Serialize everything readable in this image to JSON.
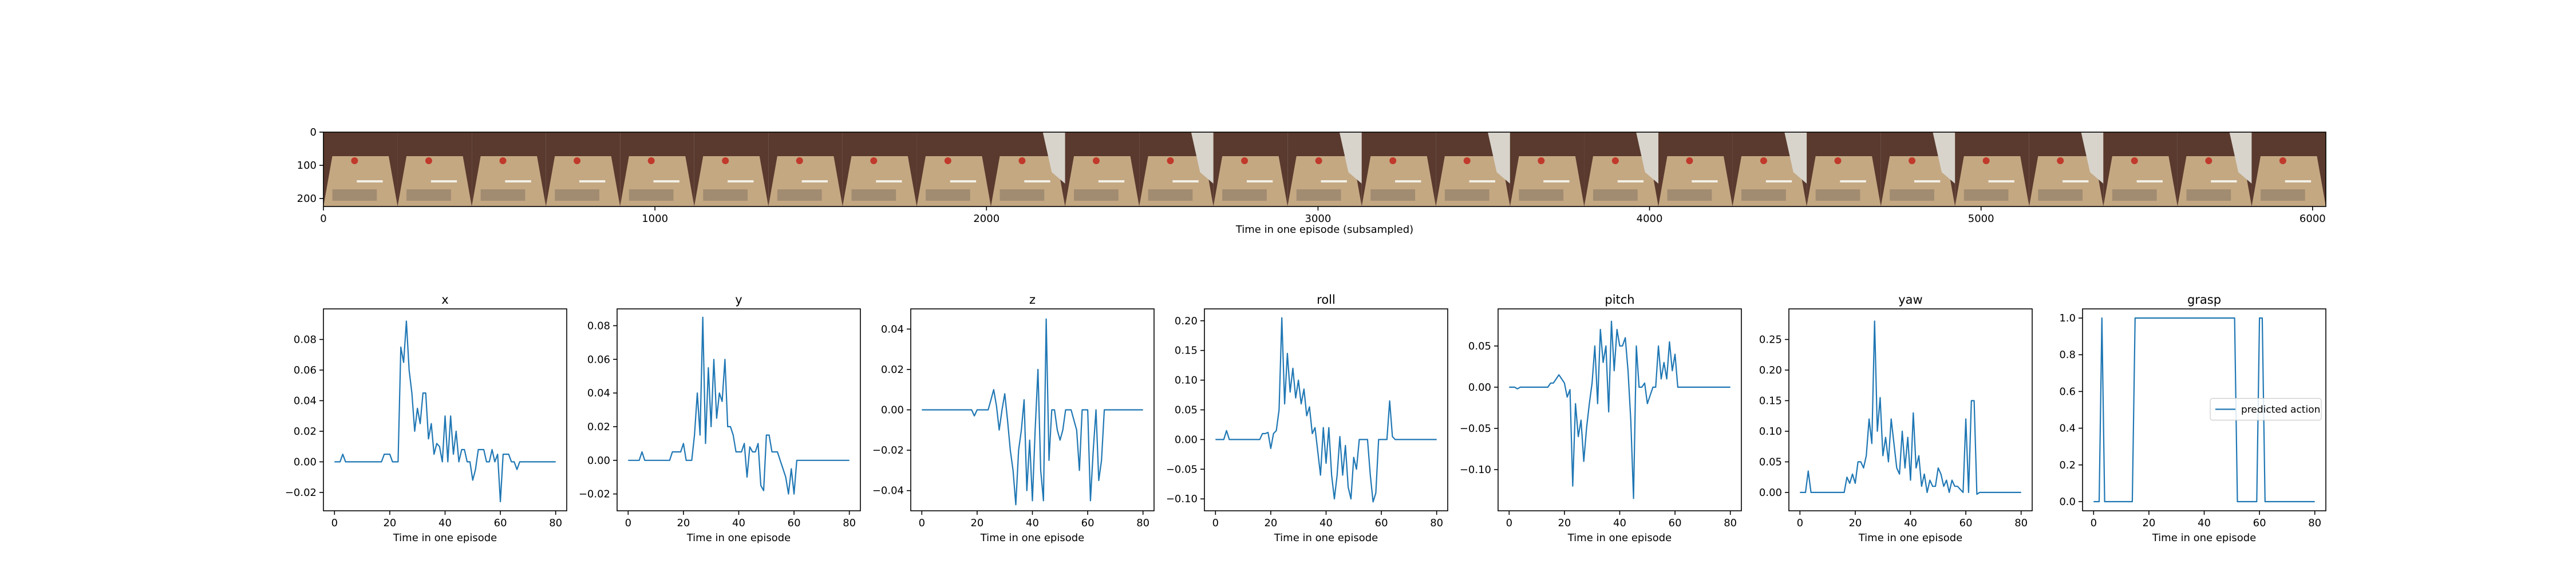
{
  "chart_data": [
    {
      "type": "image-strip",
      "xlabel": "Time in one episode (subsampled)",
      "xlim": [
        0,
        6040
      ],
      "ylim": [
        224,
        0
      ],
      "x_ticks": [
        0,
        1000,
        2000,
        3000,
        4000,
        5000,
        6000
      ],
      "y_ticks": [
        0,
        100,
        200
      ],
      "frame_count": 27,
      "frame_width": 224,
      "frame_height": 224
    },
    {
      "type": "line",
      "title": "x",
      "xlabel": "Time in one episode",
      "xlim": [
        -4,
        84
      ],
      "ylim": [
        -0.032,
        0.1
      ],
      "x_ticks": [
        0,
        20,
        40,
        60,
        80
      ],
      "y_ticks": [
        -0.02,
        0.0,
        0.02,
        0.04,
        0.06,
        0.08
      ],
      "y_tick_labels": [
        "−0.02",
        "0.00",
        "0.02",
        "0.04",
        "0.06",
        "0.08"
      ],
      "series": [
        {
          "values": [
            0,
            0,
            0,
            0.005,
            0,
            0,
            0,
            0,
            0,
            0,
            0,
            0,
            0,
            0,
            0,
            0,
            0,
            0,
            0.005,
            0.005,
            0.005,
            0,
            0,
            0,
            0.075,
            0.065,
            0.092,
            0.06,
            0.045,
            0.02,
            0.035,
            0.025,
            0.045,
            0.045,
            0.015,
            0.025,
            0.005,
            0.012,
            0.01,
            0,
            0.03,
            0,
            0.03,
            0.005,
            0.02,
            0,
            0.008,
            0.008,
            0,
            0,
            -0.012,
            -0.005,
            0.008,
            0.008,
            0.008,
            0,
            0,
            0.008,
            0,
            0.005,
            -0.026,
            0.005,
            0.005,
            0.005,
            0,
            0,
            -0.005,
            0,
            0,
            0,
            0,
            0,
            0,
            0,
            0,
            0,
            0,
            0,
            0,
            0,
            0
          ]
        }
      ],
      "legend": null
    },
    {
      "type": "line",
      "title": "y",
      "xlabel": "Time in one episode",
      "xlim": [
        -4,
        84
      ],
      "ylim": [
        -0.03,
        0.09
      ],
      "x_ticks": [
        0,
        20,
        40,
        60,
        80
      ],
      "y_ticks": [
        -0.02,
        0.0,
        0.02,
        0.04,
        0.06,
        0.08
      ],
      "y_tick_labels": [
        "−0.02",
        "0.00",
        "0.02",
        "0.04",
        "0.06",
        "0.08"
      ],
      "series": [
        {
          "values": [
            0,
            0,
            0,
            0,
            0,
            0.005,
            0,
            0,
            0,
            0,
            0,
            0,
            0,
            0,
            0,
            0,
            0.005,
            0.005,
            0.005,
            0.005,
            0.01,
            0,
            0,
            0,
            0.015,
            0.04,
            0.015,
            0.085,
            0.01,
            0.055,
            0.02,
            0.06,
            0.025,
            0.04,
            0.035,
            0.06,
            0.02,
            0.02,
            0.015,
            0.005,
            0.005,
            0.005,
            0.01,
            -0.01,
            0.008,
            0.005,
            0.005,
            0.01,
            -0.015,
            -0.018,
            0.015,
            0.015,
            0.005,
            0.005,
            0.005,
            0,
            -0.005,
            -0.01,
            -0.02,
            -0.005,
            -0.02,
            0,
            0,
            0,
            0,
            0,
            0,
            0,
            0,
            0,
            0,
            0,
            0,
            0,
            0,
            0,
            0,
            0,
            0,
            0,
            0
          ]
        }
      ],
      "legend": null
    },
    {
      "type": "line",
      "title": "z",
      "xlabel": "Time in one episode",
      "xlim": [
        -4,
        84
      ],
      "ylim": [
        -0.05,
        0.05
      ],
      "x_ticks": [
        0,
        20,
        40,
        60,
        80
      ],
      "y_ticks": [
        -0.04,
        -0.02,
        0.0,
        0.02,
        0.04
      ],
      "y_tick_labels": [
        "−0.04",
        "−0.02",
        "0.00",
        "0.02",
        "0.04"
      ],
      "series": [
        {
          "values": [
            0,
            0,
            0,
            0,
            0,
            0,
            0,
            0,
            0,
            0,
            0,
            0,
            0,
            0,
            0,
            0,
            0,
            0,
            0,
            -0.003,
            0,
            0,
            0,
            0,
            0,
            0.005,
            0.01,
            0.002,
            -0.01,
            0,
            0.008,
            -0.005,
            -0.02,
            -0.03,
            -0.047,
            -0.02,
            -0.01,
            0.005,
            -0.04,
            -0.015,
            -0.045,
            -0.01,
            0.02,
            -0.03,
            -0.045,
            0.045,
            -0.025,
            0,
            0,
            -0.01,
            -0.015,
            -0.01,
            0,
            0,
            0,
            -0.005,
            -0.01,
            -0.03,
            0,
            0,
            0,
            -0.045,
            -0.02,
            0,
            -0.035,
            -0.025,
            0,
            0,
            0,
            0,
            0,
            0,
            0,
            0,
            0,
            0,
            0,
            0,
            0,
            0,
            0
          ]
        }
      ],
      "legend": null
    },
    {
      "type": "line",
      "title": "roll",
      "xlabel": "Time in one episode",
      "xlim": [
        -4,
        84
      ],
      "ylim": [
        -0.12,
        0.22
      ],
      "x_ticks": [
        0,
        20,
        40,
        60,
        80
      ],
      "y_ticks": [
        -0.1,
        -0.05,
        0.0,
        0.05,
        0.1,
        0.15,
        0.2
      ],
      "y_tick_labels": [
        "−0.10",
        "−0.05",
        "0.00",
        "0.05",
        "0.10",
        "0.15",
        "0.20"
      ],
      "series": [
        {
          "values": [
            0,
            0,
            0,
            0,
            0.015,
            0,
            0,
            0,
            0,
            0,
            0,
            0,
            0,
            0,
            0,
            0,
            0,
            0.01,
            0.01,
            0.012,
            -0.015,
            0.01,
            0.015,
            0.05,
            0.205,
            0.06,
            0.145,
            0.08,
            0.12,
            0.07,
            0.1,
            0.06,
            0.085,
            0.04,
            0.055,
            0.01,
            0.02,
            -0.02,
            -0.06,
            0.02,
            -0.04,
            0.02,
            -0.06,
            -0.1,
            -0.06,
            0.005,
            -0.06,
            -0.01,
            -0.08,
            -0.1,
            -0.03,
            -0.05,
            0,
            0,
            0,
            0,
            -0.06,
            -0.105,
            -0.09,
            0,
            0,
            0,
            0,
            0.065,
            0.005,
            0,
            0,
            0,
            0,
            0,
            0,
            0,
            0,
            0,
            0,
            0,
            0,
            0,
            0,
            0,
            0
          ]
        }
      ],
      "legend": null
    },
    {
      "type": "line",
      "title": "pitch",
      "xlabel": "Time in one episode",
      "xlim": [
        -4,
        84
      ],
      "ylim": [
        -0.15,
        0.095
      ],
      "x_ticks": [
        0,
        20,
        40,
        60,
        80
      ],
      "y_ticks": [
        -0.1,
        -0.05,
        0.0,
        0.05
      ],
      "y_tick_labels": [
        "−0.10",
        "−0.05",
        "0.00",
        "0.05"
      ],
      "series": [
        {
          "values": [
            0,
            0,
            0,
            -0.002,
            0,
            0,
            0,
            0,
            0,
            0,
            0,
            0,
            0,
            0,
            0,
            0.005,
            0.005,
            0.01,
            0.015,
            0.01,
            0.005,
            -0.012,
            -0.003,
            -0.12,
            -0.02,
            -0.06,
            -0.04,
            -0.09,
            -0.05,
            -0.02,
            0.005,
            0.05,
            -0.02,
            0.07,
            0.03,
            0.05,
            -0.03,
            0.08,
            0.02,
            0.07,
            0.05,
            0.05,
            0.06,
            0.02,
            -0.04,
            -0.135,
            0.05,
            0,
            0,
            0.005,
            -0.02,
            -0.01,
            0,
            0,
            0.05,
            0.01,
            0.03,
            0.01,
            0.055,
            0.02,
            0.04,
            0,
            0,
            0,
            0,
            0,
            0,
            0,
            0,
            0,
            0,
            0,
            0,
            0,
            0,
            0,
            0,
            0,
            0,
            0,
            0
          ]
        }
      ],
      "legend": null
    },
    {
      "type": "line",
      "title": "yaw",
      "xlabel": "Time in one episode",
      "xlim": [
        -4,
        84
      ],
      "ylim": [
        -0.03,
        0.3
      ],
      "x_ticks": [
        0,
        20,
        40,
        60,
        80
      ],
      "y_ticks": [
        0.0,
        0.05,
        0.1,
        0.15,
        0.2,
        0.25
      ],
      "y_tick_labels": [
        "0.00",
        "0.05",
        "0.10",
        "0.15",
        "0.20",
        "0.25"
      ],
      "series": [
        {
          "values": [
            0,
            0,
            0,
            0.035,
            0,
            0,
            0,
            0,
            0,
            0,
            0,
            0,
            0,
            0,
            0,
            0,
            0,
            0.025,
            0.015,
            0.03,
            0.015,
            0.05,
            0.05,
            0.04,
            0.06,
            0.12,
            0.08,
            0.28,
            0.1,
            0.155,
            0.06,
            0.09,
            0.05,
            0.12,
            0.08,
            0.04,
            0.03,
            0.1,
            0.04,
            0.09,
            0.02,
            0.13,
            0.04,
            0.06,
            0.01,
            0.03,
            0,
            0.02,
            0.01,
            0.01,
            0.04,
            0.03,
            0.01,
            0.02,
            0,
            0.02,
            0.01,
            0.01,
            0.005,
            0,
            0.12,
            0,
            0.15,
            0.15,
            -0.003,
            0,
            0,
            0,
            0,
            0,
            0,
            0,
            0,
            0,
            0,
            0,
            0,
            0,
            0,
            0,
            0
          ]
        }
      ],
      "legend": null
    },
    {
      "type": "line",
      "title": "grasp",
      "xlabel": "Time in one episode",
      "xlim": [
        -4,
        84
      ],
      "ylim": [
        -0.05,
        1.05
      ],
      "x_ticks": [
        0,
        20,
        40,
        60,
        80
      ],
      "y_ticks": [
        0.0,
        0.2,
        0.4,
        0.6,
        0.8,
        1.0
      ],
      "y_tick_labels": [
        "0.0",
        "0.2",
        "0.4",
        "0.6",
        "0.8",
        "1.0"
      ],
      "series": [
        {
          "name": "predicted action",
          "values": [
            0,
            0,
            0,
            1,
            0,
            0,
            0,
            0,
            0,
            0,
            0,
            0,
            0,
            0,
            0,
            1,
            1,
            1,
            1,
            1,
            1,
            1,
            1,
            1,
            1,
            1,
            1,
            1,
            1,
            1,
            1,
            1,
            1,
            1,
            1,
            1,
            1,
            1,
            1,
            1,
            1,
            1,
            1,
            1,
            1,
            1,
            1,
            1,
            1,
            1,
            1,
            1,
            0,
            0,
            0,
            0,
            0,
            0,
            0,
            0,
            1,
            1,
            0,
            0,
            0,
            0,
            0,
            0,
            0,
            0,
            0,
            0,
            0,
            0,
            0,
            0,
            0,
            0,
            0,
            0,
            0
          ]
        }
      ],
      "legend": "center right"
    }
  ],
  "colors": {
    "line": "#1f77b4",
    "frame_wall": "#5a3a2e",
    "frame_table": "#c4a882",
    "frame_object": "#c0392b"
  }
}
